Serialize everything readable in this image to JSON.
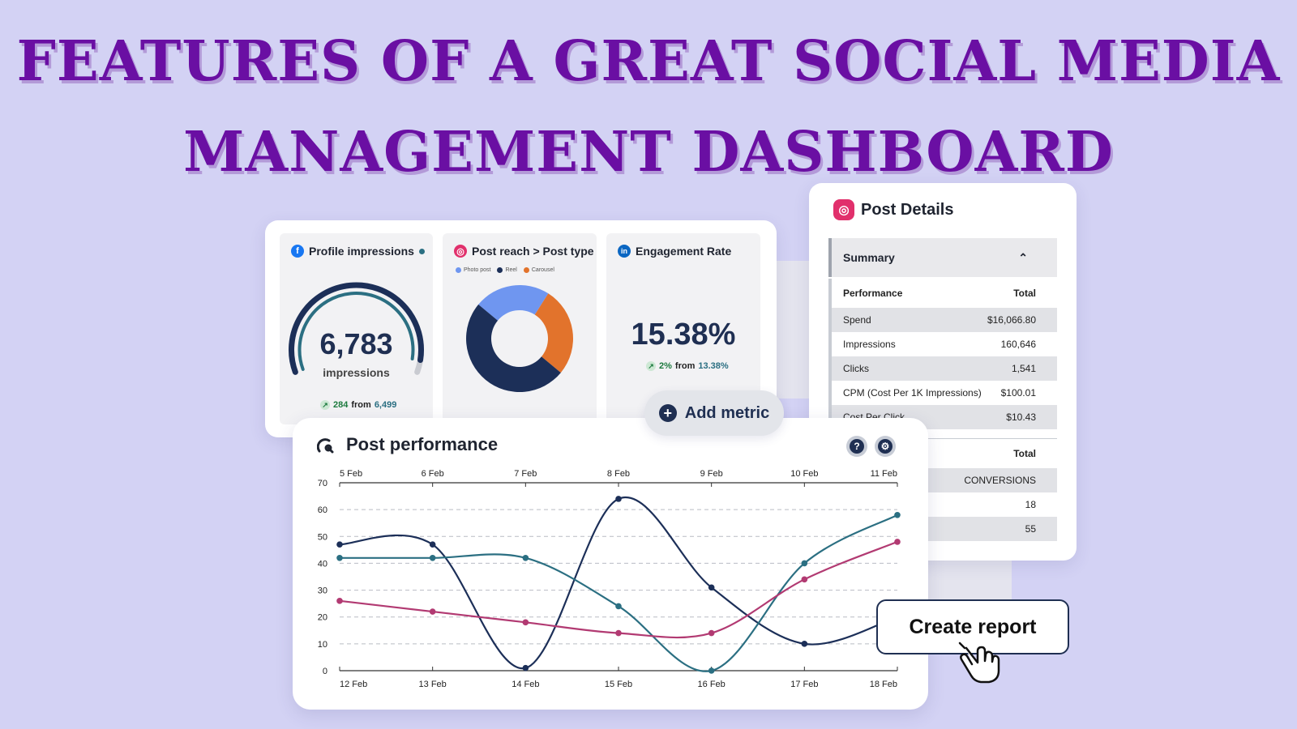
{
  "headline": {
    "line1": "FEATURES OF A GREAT SOCIAL MEDIA",
    "line2": "MANAGEMENT DASHBOARD"
  },
  "metrics": {
    "profile_impressions": {
      "title": "Profile impressions",
      "icon": "facebook-icon",
      "value": "6,783",
      "unit": "impressions",
      "delta": "284",
      "from_label": "from",
      "from_value": "6,499",
      "gauge_fraction": 0.95
    },
    "post_reach": {
      "title": "Post reach > Post type",
      "icon": "instagram-icon",
      "legend": [
        {
          "label": "Photo post",
          "color": "#6f96f0"
        },
        {
          "label": "Reel",
          "color": "#1c2f58"
        },
        {
          "label": "Carousel",
          "color": "#e2732c"
        }
      ],
      "slices": [
        {
          "label": "Photo post",
          "value": 23,
          "color": "#6f96f0"
        },
        {
          "label": "Carousel",
          "value": 27,
          "color": "#e2732c"
        },
        {
          "label": "Reel",
          "value": 50,
          "color": "#1c2f58"
        }
      ]
    },
    "engagement_rate": {
      "title": "Engagement Rate",
      "icon": "linkedin-icon",
      "value": "15.38%",
      "delta": "2%",
      "from_label": "from",
      "from_value": "13.38%"
    }
  },
  "add_metric": {
    "label": "Add metric"
  },
  "post_details": {
    "title": "Post Details",
    "summary_label": "Summary",
    "table1_header": [
      "Performance",
      "Total"
    ],
    "table1_rows": [
      [
        "Spend",
        "$16,066.80"
      ],
      [
        "Impressions",
        "160,646"
      ],
      [
        "Clicks",
        "1,541"
      ],
      [
        "CPM (Cost Per 1K Impressions)",
        "$100.01"
      ],
      [
        "Cost Per Click",
        "$10.43"
      ]
    ],
    "table2_header": "Total",
    "table2_rows": [
      "CONVERSIONS",
      "18",
      "55"
    ]
  },
  "post_performance": {
    "title": "Post performance"
  },
  "create_report": {
    "label": "Create report"
  },
  "colors": {
    "background": "#d3d2f4",
    "headline": "#6a0fa3",
    "navy": "#1f2f52",
    "teal": "#2b6f82",
    "magenta": "#b23a72"
  },
  "chart_data": {
    "type": "line",
    "x_top": [
      "5 Feb",
      "6 Feb",
      "7 Feb",
      "8 Feb",
      "9 Feb",
      "10 Feb",
      "11 Feb"
    ],
    "x_bottom": [
      "12 Feb",
      "13 Feb",
      "14 Feb",
      "15 Feb",
      "16 Feb",
      "17 Feb",
      "18 Feb"
    ],
    "ylim": [
      0,
      70
    ],
    "yticks": [
      0,
      10,
      20,
      30,
      40,
      50,
      60,
      70
    ],
    "grid": true,
    "series": [
      {
        "color": "#1c2f58",
        "values": [
          47,
          47,
          1,
          64,
          31,
          10,
          20
        ]
      },
      {
        "color": "#2b6f82",
        "values": [
          42,
          42,
          42,
          24,
          0,
          40,
          58
        ]
      },
      {
        "color": "#b23a72",
        "values": [
          26,
          22,
          18,
          14,
          14,
          34,
          48
        ]
      }
    ]
  }
}
